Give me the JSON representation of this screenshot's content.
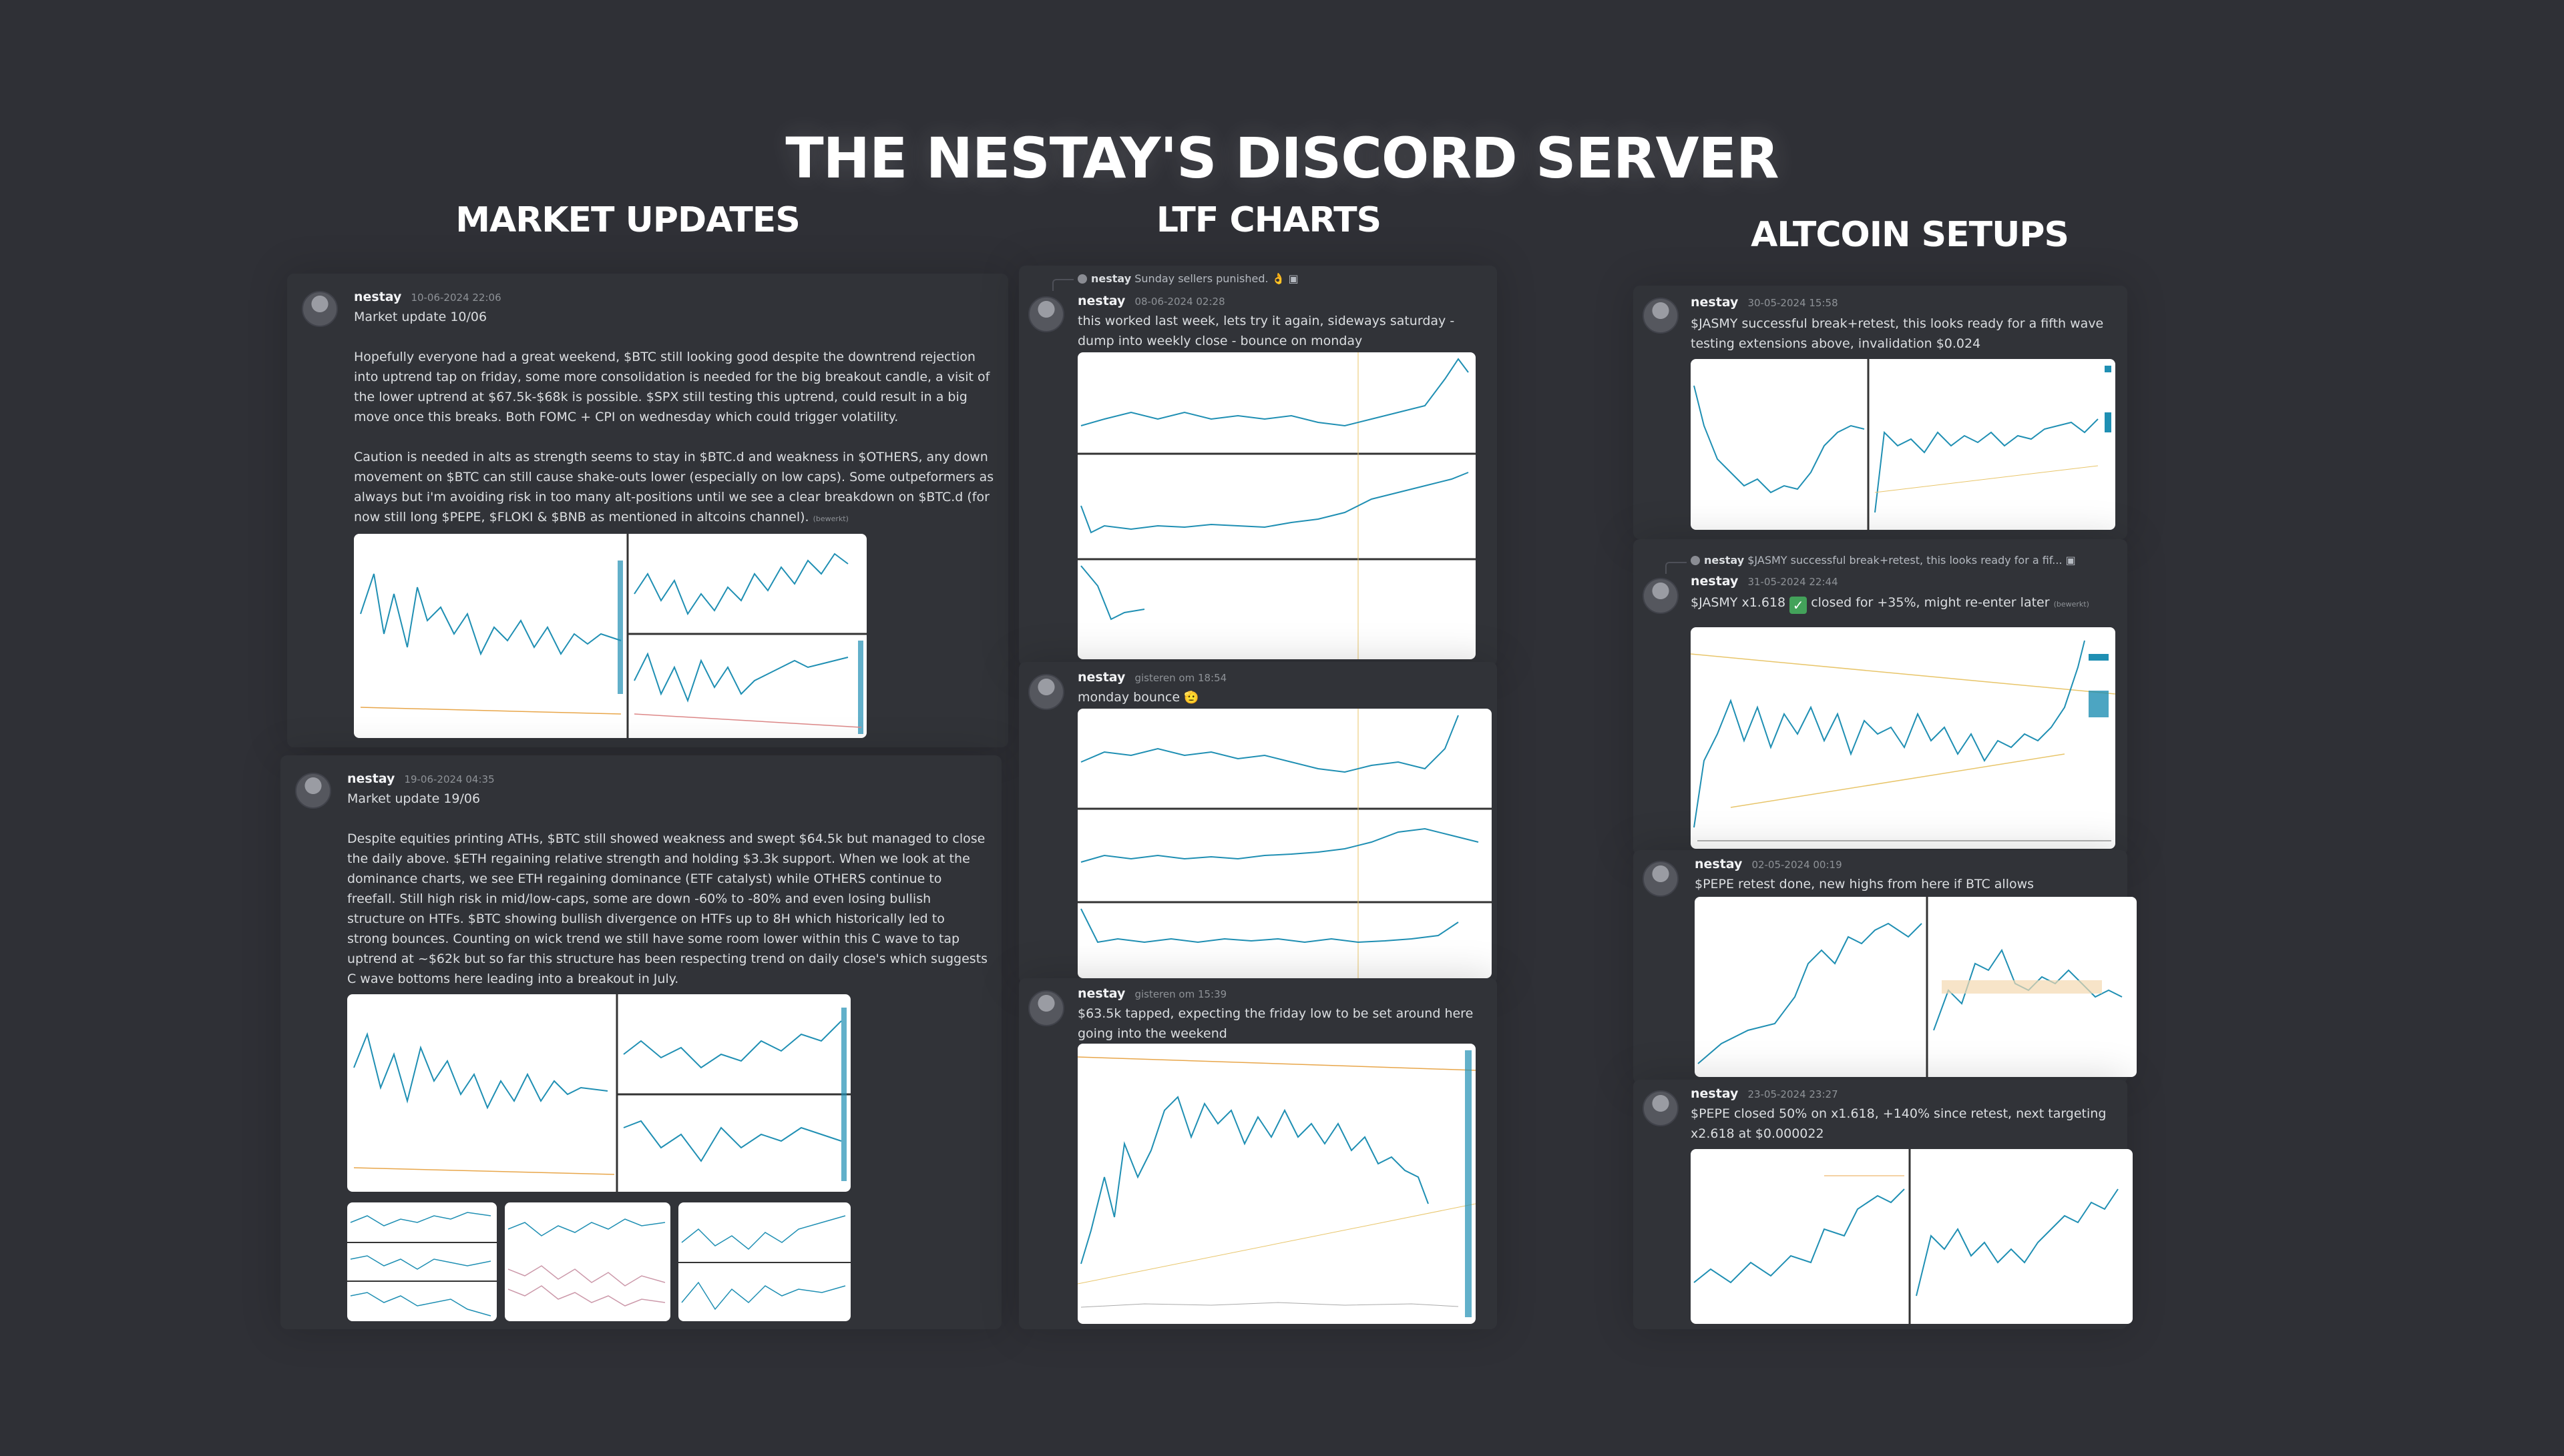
{
  "page": {
    "title": "THE NESTAY'S DISCORD SERVER"
  },
  "sections": {
    "market": "MARKET UPDATES",
    "ltf": "LTF CHARTS",
    "altcoin": "ALTCOIN SETUPS"
  },
  "market_messages": [
    {
      "author": "nestay",
      "timestamp": "10-06-2024 22:06",
      "text": "Market update 10/06\n\nHopefully everyone had a great weekend, $BTC still looking good despite the downtrend rejection into uptrend tap on friday, some more consolidation is needed for the big breakout candle, a visit of the lower uptrend at $67.5k-$68k is possible. $SPX still testing this uptrend, could result in a big move once this breaks. Both FOMC + CPI on wednesday which could trigger volatility.\n\nCaution is needed in alts as strength seems to stay in $BTC.d and weakness in $OTHERS, any down movement on $BTC can still cause shake-outs lower (especially on low caps). Some outpeformers as always but i'm avoiding risk in too many alt-positions until we see a clear breakdown on $BTC.d (for now still long $PEPE, $FLOKI & $BNB as mentioned in altcoins channel).",
      "edited": "(bewerkt)"
    },
    {
      "author": "nestay",
      "timestamp": "19-06-2024 04:35",
      "text": "Market update 19/06\n\nDespite equities printing ATHs, $BTC still showed weakness and swept $64.5k but managed to close the daily above. $ETH regaining relative strength and holding $3.3k support. When we look at the dominance charts, we see ETH regaining dominance (ETF catalyst) while OTHERS continue to freefall. Still high risk in mid/low-caps, some are down -60% to -80% and even losing bullish structure on HTFs. $BTC showing bullish divergence on HTFs up to 8H which historically led to strong bounces. Counting on wick trend we still have some room lower within this C wave to tap uptrend at ~$62k but so far this structure has been respecting trend on daily close's which suggests C wave bottoms here leading into a breakout in July."
    }
  ],
  "ltf_messages": [
    {
      "reply_author": "nestay",
      "reply_text": "Sunday sellers punished. 👌",
      "author": "nestay",
      "timestamp": "08-06-2024 02:28",
      "text": "this worked last week, lets try it again, sideways saturday - dump into weekly close - bounce on monday"
    },
    {
      "author": "nestay",
      "timestamp": "gisteren om 18:54",
      "text": "monday bounce",
      "emoji": "🫡"
    },
    {
      "author": "nestay",
      "timestamp": "gisteren om 15:39",
      "text": "$63.5k tapped, expecting the friday low to be set around here going into the weekend"
    }
  ],
  "altcoin_messages": [
    {
      "author": "nestay",
      "timestamp": "30-05-2024 15:58",
      "text": "$JASMY successful break+retest, this looks ready for a fifth wave testing extensions above, invalidation $0.024"
    },
    {
      "reply_author": "nestay",
      "reply_text": "$JASMY successful break+retest, this looks ready for a fif...",
      "author": "nestay",
      "timestamp": "31-05-2024 22:44",
      "text_before": "$JASMY x1.618",
      "check": "✓",
      "text_after": "closed for +35%, might re-enter later",
      "edited": "(bewerkt)"
    },
    {
      "author": "nestay",
      "timestamp": "02-05-2024 00:19",
      "text": "$PEPE retest done, new highs from here if BTC allows"
    },
    {
      "author": "nestay",
      "timestamp": "23-05-2024 23:27",
      "text": "$PEPE closed 50% on x1.618, +140% since retest, next targeting x2.618 at $0.000022"
    }
  ],
  "colors": {
    "background": "#2f3036",
    "panel": "#313338",
    "chart_line": "#1f8fb3",
    "chart_bg": "#ffffff",
    "accent_orange": "#e8a64a",
    "check_green": "#43a25a"
  }
}
